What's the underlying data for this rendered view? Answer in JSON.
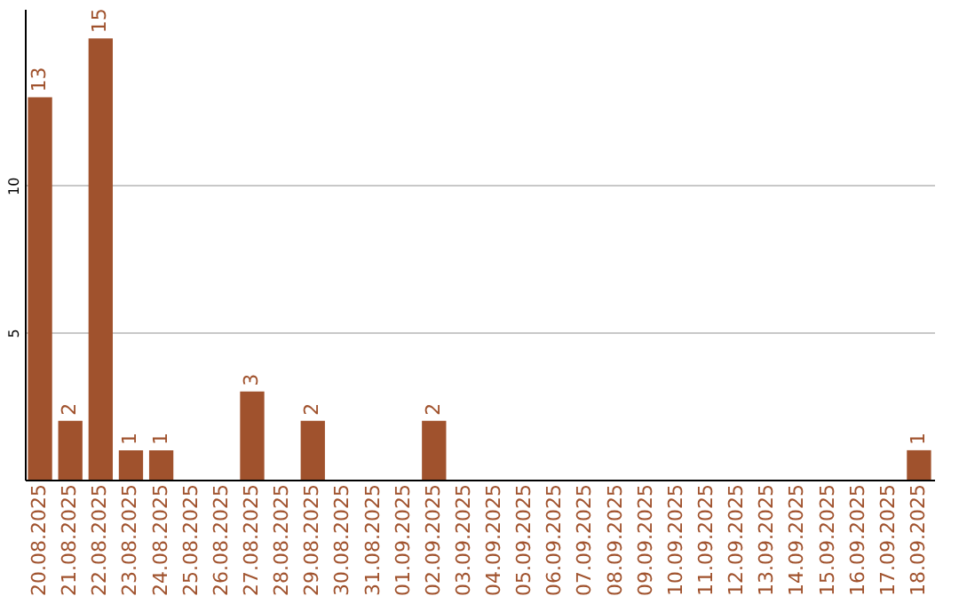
{
  "chart_data": {
    "type": "bar",
    "categories": [
      "20.08.2025",
      "21.08.2025",
      "22.08.2025",
      "23.08.2025",
      "24.08.2025",
      "25.08.2025",
      "26.08.2025",
      "27.08.2025",
      "28.08.2025",
      "29.08.2025",
      "30.08.2025",
      "31.08.2025",
      "01.09.2025",
      "02.09.2025",
      "03.09.2025",
      "04.09.2025",
      "05.09.2025",
      "06.09.2025",
      "07.09.2025",
      "08.09.2025",
      "09.09.2025",
      "10.09.2025",
      "11.09.2025",
      "12.09.2025",
      "13.09.2025",
      "14.09.2025",
      "15.09.2025",
      "16.09.2025",
      "17.09.2025",
      "18.09.2025"
    ],
    "values": [
      13,
      2,
      15,
      1,
      1,
      0,
      0,
      3,
      0,
      2,
      0,
      0,
      0,
      2,
      0,
      0,
      0,
      0,
      0,
      0,
      0,
      0,
      0,
      0,
      0,
      0,
      0,
      0,
      0,
      1
    ],
    "value_labels": [
      "13",
      "2",
      "15",
      "1",
      "1",
      null,
      null,
      "3",
      null,
      "2",
      null,
      null,
      null,
      "2",
      null,
      null,
      null,
      null,
      null,
      null,
      null,
      null,
      null,
      null,
      null,
      null,
      null,
      null,
      null,
      "1"
    ],
    "color": "#a0522d",
    "ylim": [
      0,
      16
    ],
    "yticks": [
      5,
      10
    ],
    "grid": "y"
  }
}
